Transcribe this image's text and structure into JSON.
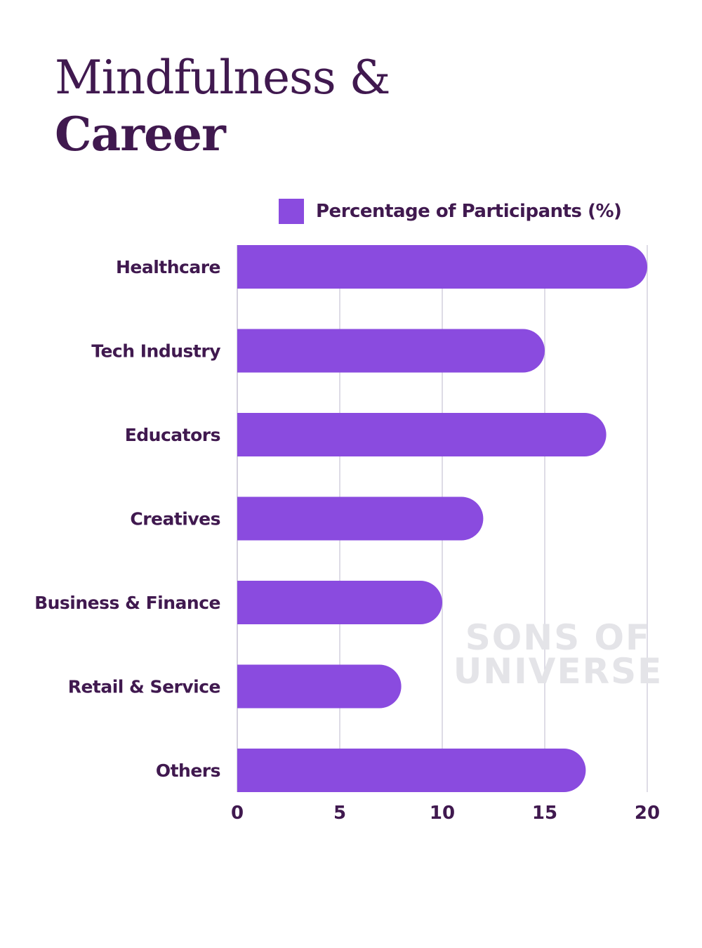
{
  "title": {
    "line1": "Mindfulness &",
    "line2": "Career"
  },
  "watermark": {
    "line1": "SONS OF",
    "line2": "UNIVERSE"
  },
  "colors": {
    "bar": "#8a4bdf",
    "text": "#40194f",
    "grid": "#d4d0de"
  },
  "chart_data": {
    "type": "bar",
    "orientation": "horizontal",
    "categories": [
      "Healthcare",
      "Tech Industry",
      "Educators",
      "Creatives",
      "Business & Finance",
      "Retail & Service",
      "Others"
    ],
    "series": [
      {
        "name": "Percentage of Participants (%)",
        "values": [
          20,
          15,
          18,
          12,
          10,
          8,
          17
        ]
      }
    ],
    "xlim": [
      0,
      20
    ],
    "xticks": [
      "0",
      "5",
      "10",
      "15",
      "20"
    ],
    "grid": "vertical",
    "legend": "top"
  }
}
